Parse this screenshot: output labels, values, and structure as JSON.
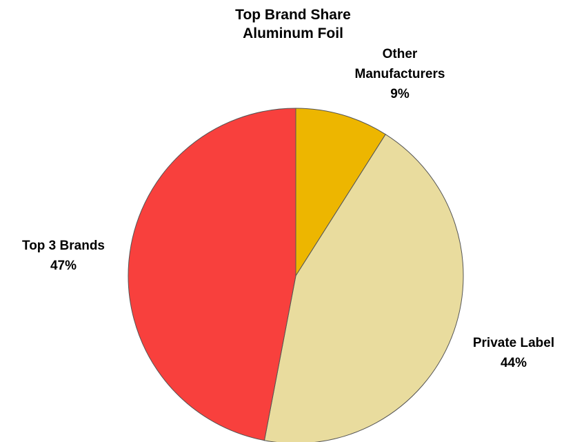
{
  "chart_data": {
    "type": "pie",
    "title": [
      "Top Brand Share",
      "Aluminum Foil"
    ],
    "start_angle_deg": 0,
    "direction": "clockwise",
    "slices": [
      {
        "name": "Other Manufacturers",
        "label_lines": [
          "Other",
          "Manufacturers"
        ],
        "value": 9,
        "value_label": "9%",
        "color": "#EDB600"
      },
      {
        "name": "Private Label",
        "label_lines": [
          "Private Label"
        ],
        "value": 44,
        "value_label": "44%",
        "color": "#E9DC9E"
      },
      {
        "name": "Top 3 Brands",
        "label_lines": [
          "Top 3 Brands"
        ],
        "value": 47,
        "value_label": "47%",
        "color": "#F8403D"
      }
    ],
    "slice_border_color": "#555555"
  }
}
